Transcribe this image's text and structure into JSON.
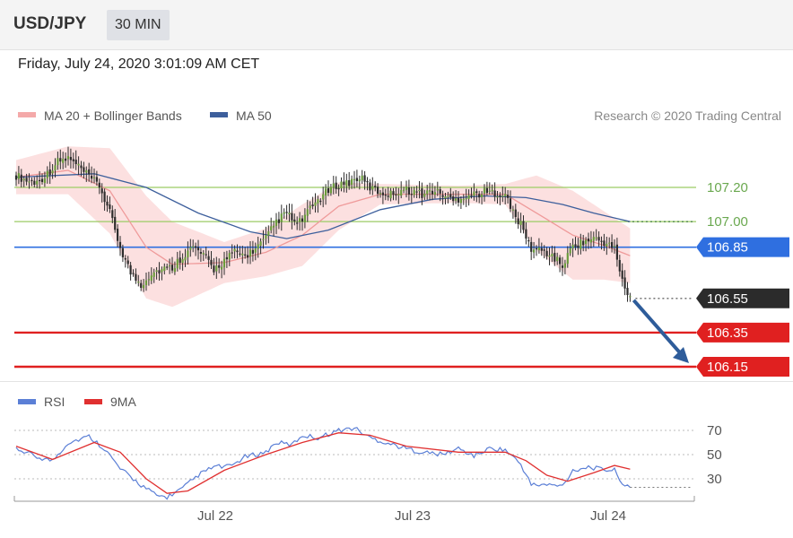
{
  "header": {
    "pair": "USD/JPY",
    "timeframe": "30 MIN"
  },
  "datetime": "Friday, July 24, 2020 3:01:09 AM CET",
  "legend": {
    "ma20_label": "MA 20 + Bollinger Bands",
    "ma50_label": "MA 50",
    "copyright": "Research © 2020 Trading Central"
  },
  "colors": {
    "bollinger_fill": "#fbdada",
    "ma20": "#ef9a9a",
    "ma50": "#3d5f9c",
    "candle": "#2d2d2d",
    "green_level": "#9ccc65",
    "blue_level": "#2f6fe0",
    "red_level": "#e02020",
    "last_price": "#2b2b2b",
    "arrow": "#2e5c9a",
    "rsi": "#5b7fd6",
    "rsi_ma": "#e03030"
  },
  "chart_data": [
    {
      "type": "candlestick",
      "title": "",
      "instrument": "USD/JPY",
      "interval": "30 MIN",
      "ylim": [
        106.0,
        107.6
      ],
      "x_ticks": [
        "Jul 22",
        "Jul 23",
        "Jul 24"
      ],
      "overlays": [
        "MA 20 + Bollinger Bands",
        "MA 50"
      ],
      "levels": [
        {
          "value": 107.2,
          "label": "107.20",
          "kind": "resistance"
        },
        {
          "value": 107.0,
          "label": "107.00",
          "kind": "resistance"
        },
        {
          "value": 106.85,
          "label": "106.85",
          "kind": "pivot"
        },
        {
          "value": 106.55,
          "label": "106.55",
          "kind": "last"
        },
        {
          "value": 106.35,
          "label": "106.35",
          "kind": "support"
        },
        {
          "value": 106.15,
          "label": "106.15",
          "kind": "support"
        }
      ],
      "close_path": [
        [
          0,
          107.27
        ],
        [
          4,
          107.24
        ],
        [
          8,
          107.23
        ],
        [
          12,
          107.28
        ],
        [
          16,
          107.35
        ],
        [
          20,
          107.37
        ],
        [
          24,
          107.32
        ],
        [
          28,
          107.26
        ],
        [
          32,
          107.21
        ],
        [
          36,
          107.05
        ],
        [
          40,
          106.85
        ],
        [
          44,
          106.7
        ],
        [
          48,
          106.63
        ],
        [
          52,
          106.7
        ],
        [
          56,
          106.72
        ],
        [
          60,
          106.73
        ],
        [
          64,
          106.8
        ],
        [
          68,
          106.85
        ],
        [
          72,
          106.8
        ],
        [
          76,
          106.72
        ],
        [
          80,
          106.77
        ],
        [
          84,
          106.82
        ],
        [
          88,
          106.8
        ],
        [
          92,
          106.84
        ],
        [
          96,
          106.9
        ],
        [
          100,
          107.0
        ],
        [
          104,
          107.05
        ],
        [
          108,
          106.98
        ],
        [
          112,
          107.05
        ],
        [
          116,
          107.13
        ],
        [
          120,
          107.18
        ],
        [
          124,
          107.22
        ],
        [
          128,
          107.23
        ],
        [
          132,
          107.26
        ],
        [
          136,
          107.2
        ],
        [
          140,
          107.17
        ],
        [
          144,
          107.16
        ],
        [
          148,
          107.19
        ],
        [
          152,
          107.18
        ],
        [
          156,
          107.16
        ],
        [
          160,
          107.18
        ],
        [
          164,
          107.16
        ],
        [
          168,
          107.12
        ],
        [
          172,
          107.15
        ],
        [
          176,
          107.16
        ],
        [
          180,
          107.17
        ],
        [
          184,
          107.17
        ],
        [
          188,
          107.16
        ],
        [
          190,
          107.08
        ],
        [
          194,
          106.98
        ],
        [
          198,
          106.84
        ],
        [
          202,
          106.83
        ],
        [
          206,
          106.8
        ],
        [
          210,
          106.74
        ],
        [
          214,
          106.86
        ],
        [
          218,
          106.88
        ],
        [
          222,
          106.9
        ],
        [
          226,
          106.88
        ],
        [
          230,
          106.84
        ],
        [
          234,
          106.6
        ],
        [
          236,
          106.55
        ]
      ],
      "bollinger_center_path": [
        [
          0,
          107.26
        ],
        [
          20,
          107.3
        ],
        [
          36,
          107.18
        ],
        [
          50,
          106.85
        ],
        [
          60,
          106.75
        ],
        [
          80,
          106.76
        ],
        [
          96,
          106.82
        ],
        [
          110,
          106.92
        ],
        [
          124,
          107.09
        ],
        [
          140,
          107.16
        ],
        [
          170,
          107.16
        ],
        [
          188,
          107.16
        ],
        [
          200,
          107.05
        ],
        [
          214,
          106.92
        ],
        [
          226,
          106.86
        ],
        [
          236,
          106.8
        ]
      ],
      "bollinger_width_path": [
        [
          0,
          0.1
        ],
        [
          20,
          0.14
        ],
        [
          36,
          0.25
        ],
        [
          50,
          0.3
        ],
        [
          60,
          0.25
        ],
        [
          80,
          0.12
        ],
        [
          96,
          0.14
        ],
        [
          110,
          0.18
        ],
        [
          124,
          0.14
        ],
        [
          140,
          0.06
        ],
        [
          170,
          0.05
        ],
        [
          188,
          0.06
        ],
        [
          200,
          0.22
        ],
        [
          214,
          0.26
        ],
        [
          226,
          0.2
        ],
        [
          236,
          0.16
        ]
      ],
      "ma50_path": [
        [
          0,
          107.26
        ],
        [
          30,
          107.28
        ],
        [
          50,
          107.2
        ],
        [
          70,
          107.05
        ],
        [
          90,
          106.94
        ],
        [
          104,
          106.9
        ],
        [
          120,
          106.95
        ],
        [
          140,
          107.07
        ],
        [
          160,
          107.13
        ],
        [
          180,
          107.15
        ],
        [
          196,
          107.14
        ],
        [
          210,
          107.1
        ],
        [
          222,
          107.05
        ],
        [
          236,
          107.0
        ]
      ]
    },
    {
      "type": "line",
      "title": "",
      "ylim": [
        10,
        80
      ],
      "y_ticks": [
        70,
        50,
        30
      ],
      "x_ticks": [
        "Jul 22",
        "Jul 23",
        "Jul 24"
      ],
      "series": [
        {
          "name": "RSI",
          "path": [
            [
              0,
              55
            ],
            [
              8,
              48
            ],
            [
              14,
              45
            ],
            [
              20,
              60
            ],
            [
              28,
              65
            ],
            [
              34,
              55
            ],
            [
              40,
              38
            ],
            [
              48,
              25
            ],
            [
              54,
              16
            ],
            [
              58,
              15
            ],
            [
              64,
              22
            ],
            [
              70,
              33
            ],
            [
              76,
              40
            ],
            [
              82,
              40
            ],
            [
              88,
              48
            ],
            [
              96,
              52
            ],
            [
              100,
              60
            ],
            [
              106,
              58
            ],
            [
              110,
              66
            ],
            [
              116,
              64
            ],
            [
              124,
              70
            ],
            [
              130,
              72
            ],
            [
              136,
              64
            ],
            [
              142,
              60
            ],
            [
              150,
              55
            ],
            [
              156,
              52
            ],
            [
              164,
              50
            ],
            [
              170,
              55
            ],
            [
              176,
              49
            ],
            [
              182,
              55
            ],
            [
              188,
              54
            ],
            [
              194,
              42
            ],
            [
              198,
              25
            ],
            [
              204,
              25
            ],
            [
              210,
              24
            ],
            [
              214,
              37
            ],
            [
              220,
              40
            ],
            [
              224,
              38
            ],
            [
              230,
              37
            ],
            [
              234,
              24
            ],
            [
              236,
              22
            ]
          ]
        },
        {
          "name": "9MA",
          "path": [
            [
              0,
              57
            ],
            [
              14,
              46
            ],
            [
              30,
              60
            ],
            [
              40,
              52
            ],
            [
              50,
              30
            ],
            [
              58,
              18
            ],
            [
              66,
              20
            ],
            [
              80,
              37
            ],
            [
              96,
              50
            ],
            [
              110,
              60
            ],
            [
              124,
              68
            ],
            [
              136,
              66
            ],
            [
              150,
              57
            ],
            [
              170,
              52
            ],
            [
              188,
              52
            ],
            [
              196,
              45
            ],
            [
              204,
              33
            ],
            [
              212,
              28
            ],
            [
              222,
              35
            ],
            [
              230,
              41
            ],
            [
              236,
              38
            ]
          ]
        }
      ]
    }
  ]
}
